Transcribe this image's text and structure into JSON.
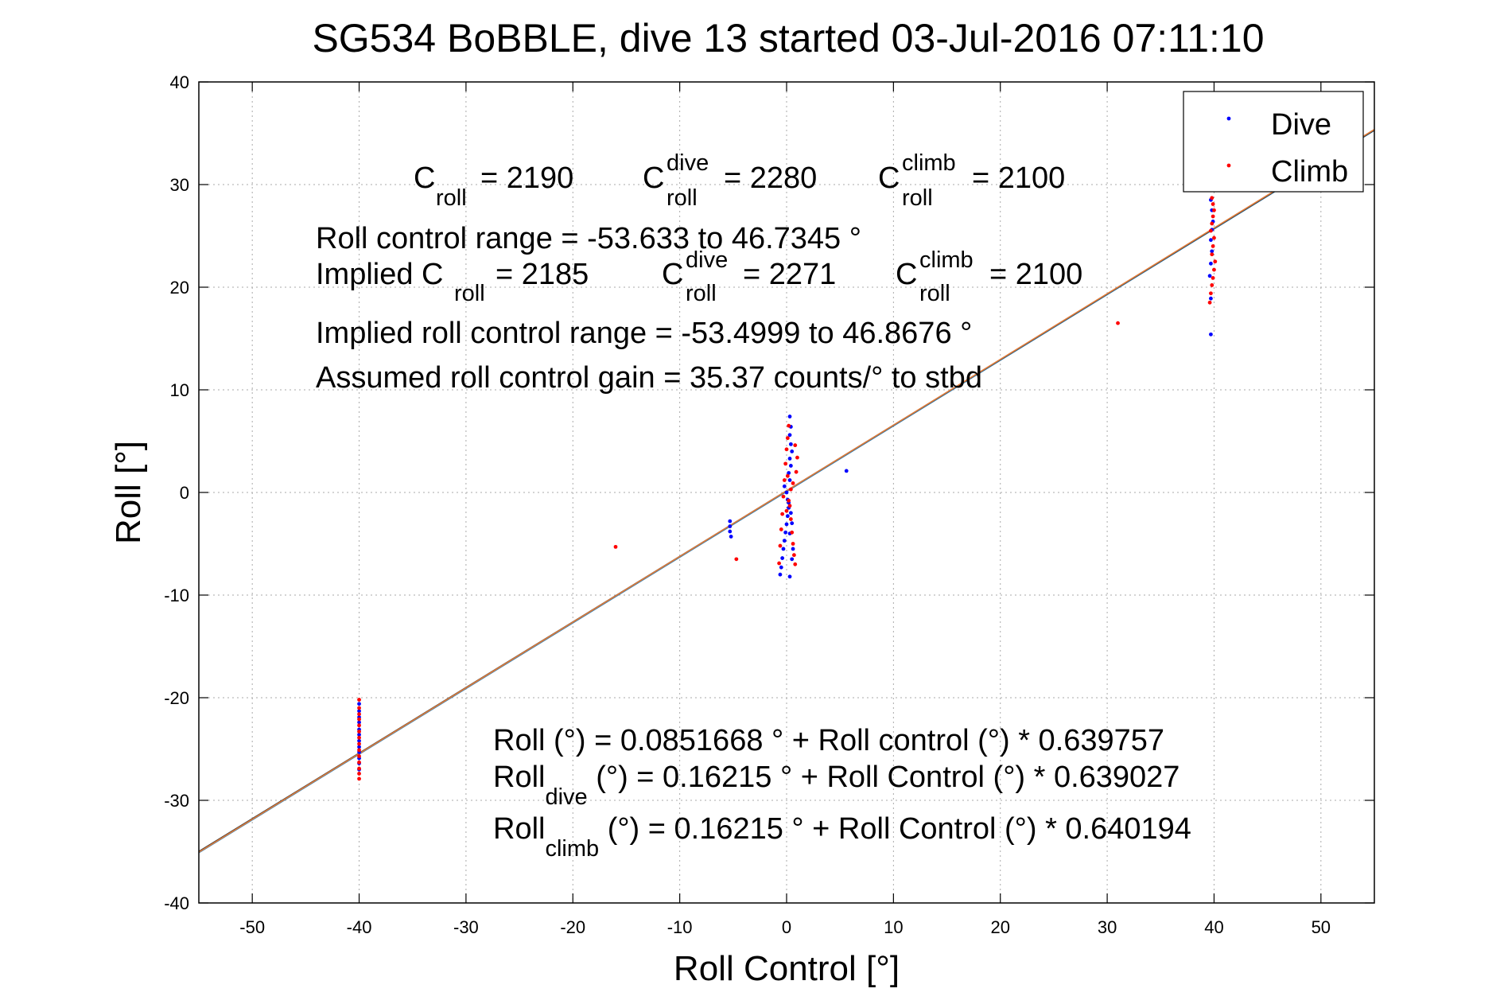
{
  "chart_data": {
    "type": "scatter",
    "title": "SG534 BoBBLE, dive 13 started 03-Jul-2016 07:11:10",
    "xlabel": "Roll Control [°]",
    "ylabel": "Roll [°]",
    "xlim": [
      -55,
      55
    ],
    "ylim": [
      -40,
      40
    ],
    "xticks": [
      -50,
      -40,
      -30,
      -20,
      -10,
      0,
      10,
      20,
      30,
      40,
      50
    ],
    "yticks": [
      -40,
      -30,
      -20,
      -10,
      0,
      10,
      20,
      30,
      40
    ],
    "grid": true,
    "legend_position": "top-right",
    "colors": {
      "dive": "#0000ff",
      "climb": "#ff0000",
      "fit_total": "#2c7fb8",
      "fit_dive": "#333333",
      "fit_climb": "#e07b39"
    },
    "fits": [
      {
        "intercept": 0.0851668,
        "slope": 0.639757
      },
      {
        "intercept": 0.16215,
        "slope": 0.639027
      },
      {
        "intercept": 0.16215,
        "slope": 0.640194
      }
    ],
    "series": [
      {
        "name": "Dive",
        "marker": "dot",
        "points": [
          [
            -40,
            -20.6
          ],
          [
            -40,
            -21.3
          ],
          [
            -40,
            -21.9
          ],
          [
            -40,
            -22.4
          ],
          [
            -40,
            -23.1
          ],
          [
            -40,
            -23.6
          ],
          [
            -40,
            -24.2
          ],
          [
            -40,
            -24.8
          ],
          [
            -40,
            -25.3
          ],
          [
            -40,
            -25.9
          ],
          [
            -40,
            -26.4
          ],
          [
            -40,
            -27.0
          ],
          [
            -5.3,
            -2.8
          ],
          [
            -5.3,
            -3.3
          ],
          [
            -5.3,
            -3.8
          ],
          [
            -5.2,
            -4.3
          ],
          [
            -0.6,
            -8.0
          ],
          [
            -0.5,
            -7.3
          ],
          [
            -0.4,
            -6.4
          ],
          [
            -0.3,
            -5.5
          ],
          [
            -0.2,
            -4.7
          ],
          [
            -0.1,
            -3.9
          ],
          [
            0.0,
            -3.1
          ],
          [
            0.1,
            -2.3
          ],
          [
            0.2,
            -1.5
          ],
          [
            0.1,
            -0.7
          ],
          [
            0.0,
            0.0
          ],
          [
            -0.2,
            0.6
          ],
          [
            0.3,
            1.2
          ],
          [
            0.2,
            1.9
          ],
          [
            0.4,
            2.6
          ],
          [
            0.3,
            3.3
          ],
          [
            0.5,
            4.0
          ],
          [
            0.4,
            4.7
          ],
          [
            0.3,
            5.6
          ],
          [
            0.4,
            6.4
          ],
          [
            0.3,
            7.4
          ],
          [
            0.2,
            -1.0
          ],
          [
            0.4,
            -2.0
          ],
          [
            0.5,
            -3.0
          ],
          [
            0.3,
            -4.0
          ],
          [
            0.6,
            -5.5
          ],
          [
            0.5,
            -6.5
          ],
          [
            0.3,
            -8.2
          ],
          [
            5.6,
            2.1
          ],
          [
            39.7,
            15.4
          ],
          [
            39.7,
            18.9
          ],
          [
            39.6,
            21.1
          ],
          [
            39.7,
            22.3
          ],
          [
            39.8,
            23.5
          ],
          [
            39.7,
            24.6
          ],
          [
            39.8,
            25.6
          ],
          [
            39.9,
            26.4
          ],
          [
            39.8,
            27.5
          ],
          [
            39.7,
            28.5
          ]
        ]
      },
      {
        "name": "Climb",
        "marker": "dot",
        "points": [
          [
            -40,
            -20.2
          ],
          [
            -40,
            -21.0
          ],
          [
            -40,
            -21.6
          ],
          [
            -40,
            -22.1
          ],
          [
            -40,
            -22.7
          ],
          [
            -40,
            -23.3
          ],
          [
            -40,
            -23.9
          ],
          [
            -40,
            -24.5
          ],
          [
            -40,
            -25.1
          ],
          [
            -40,
            -25.7
          ],
          [
            -40,
            -26.3
          ],
          [
            -40,
            -26.9
          ],
          [
            -40,
            -27.4
          ],
          [
            -40,
            -27.9
          ],
          [
            -16,
            -5.3
          ],
          [
            -4.7,
            -6.5
          ],
          [
            -0.7,
            -6.9
          ],
          [
            -0.6,
            -5.2
          ],
          [
            -0.5,
            -3.6
          ],
          [
            -0.4,
            -2.1
          ],
          [
            -0.3,
            -0.4
          ],
          [
            -0.2,
            1.2
          ],
          [
            -0.1,
            2.8
          ],
          [
            0.0,
            4.2
          ],
          [
            0.1,
            5.3
          ],
          [
            0.2,
            6.5
          ],
          [
            0.3,
            -1.3
          ],
          [
            0.4,
            -2.6
          ],
          [
            0.5,
            -3.9
          ],
          [
            0.6,
            -5.0
          ],
          [
            0.7,
            -6.1
          ],
          [
            0.8,
            -7.0
          ],
          [
            0.9,
            2.0
          ],
          [
            1.0,
            3.4
          ],
          [
            0.8,
            4.6
          ],
          [
            0.6,
            0.9
          ],
          [
            0.4,
            0.3
          ],
          [
            0.2,
            -0.8
          ],
          [
            0.0,
            -1.8
          ],
          [
            0.1,
            1.6
          ],
          [
            31,
            16.5
          ],
          [
            39.6,
            18.5
          ],
          [
            39.7,
            19.4
          ],
          [
            39.8,
            20.2
          ],
          [
            39.9,
            20.9
          ],
          [
            40.0,
            21.7
          ],
          [
            40.1,
            22.5
          ],
          [
            39.8,
            23.2
          ],
          [
            39.9,
            24.0
          ],
          [
            40.0,
            24.8
          ],
          [
            39.7,
            25.5
          ],
          [
            39.8,
            26.2
          ],
          [
            39.9,
            26.9
          ],
          [
            40.0,
            27.5
          ],
          [
            39.9,
            28.1
          ],
          [
            39.8,
            28.7
          ]
        ]
      }
    ]
  },
  "legend": {
    "dive_label": "Dive",
    "climb_label": "Climb"
  },
  "annotations": {
    "c_roll_main": "C",
    "c_roll_sub": "roll",
    "c_roll_value": "= 2190",
    "c_dive_main": "C",
    "c_dive_sup": "dive",
    "c_dive_sub": "roll",
    "c_dive_value": "= 2280",
    "c_climb_main": "C",
    "c_climb_sup": "climb",
    "c_climb_sub": "roll",
    "c_climb_value": "= 2100",
    "roll_range": "Roll control range = -53.633 to 46.7345 °",
    "implied_c_prefix": "Implied C",
    "implied_c_sub": "roll",
    "implied_c_value": "= 2185",
    "implied_dive_main": "C",
    "implied_dive_sup": "dive",
    "implied_dive_sub": "roll",
    "implied_dive_value": "= 2271",
    "implied_climb_main": "C",
    "implied_climb_sup": "climb",
    "implied_climb_sub": "roll",
    "implied_climb_value": "= 2100",
    "implied_range": "Implied roll control range = -53.4999 to 46.8676 °",
    "gain": "Assumed roll control gain = 35.37 counts/° to stbd",
    "eq_all": "Roll (°) = 0.0851668 ° + Roll control (°) * 0.639757",
    "eq_dive_prefix": "Roll",
    "eq_dive_sub": "dive",
    "eq_dive_rest": " (°) = 0.16215 ° + Roll Control (°) * 0.639027",
    "eq_climb_prefix": "Roll",
    "eq_climb_sub": "climb",
    "eq_climb_rest": " (°) = 0.16215 ° + Roll Control (°) * 0.640194"
  }
}
